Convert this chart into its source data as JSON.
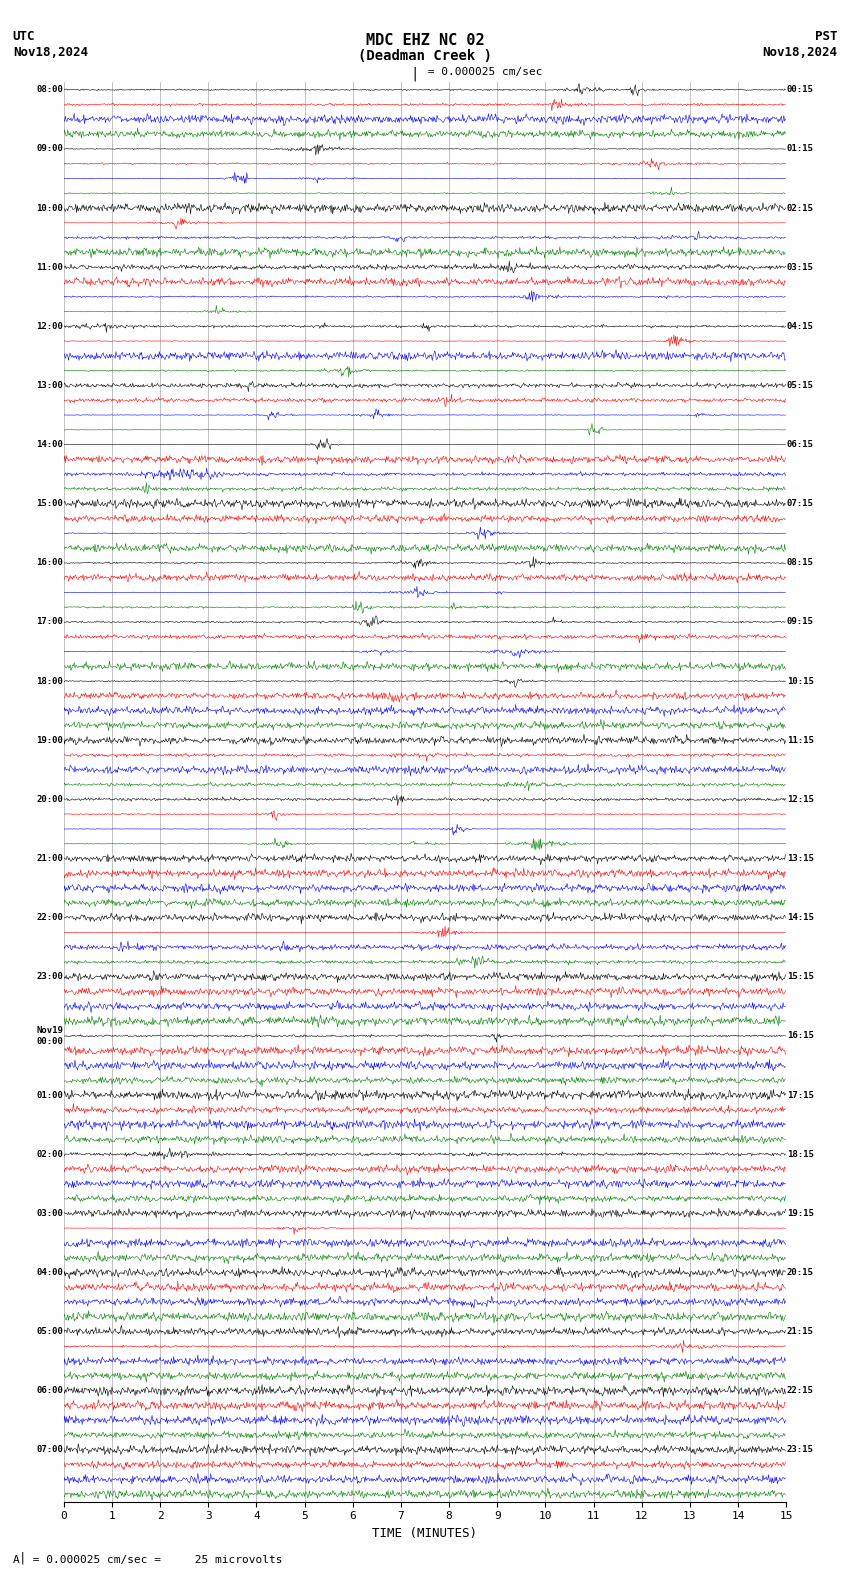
{
  "title_line1": "MDC EHZ NC 02",
  "title_line2": "(Deadman Creek )",
  "scale_text": "= 0.000025 cm/sec",
  "left_date_line1": "UTC",
  "left_date_line2": "Nov18,2024",
  "right_date_line1": "PST",
  "right_date_line2": "Nov18,2024",
  "bottom_label": "TIME (MINUTES)",
  "footnote": "= 0.000025 cm/sec =     25 microvolts",
  "utc_times": [
    "08:00",
    "09:00",
    "10:00",
    "11:00",
    "12:00",
    "13:00",
    "14:00",
    "15:00",
    "16:00",
    "17:00",
    "18:00",
    "19:00",
    "20:00",
    "21:00",
    "22:00",
    "23:00",
    "Nov19\n00:00",
    "01:00",
    "02:00",
    "03:00",
    "04:00",
    "05:00",
    "06:00",
    "07:00"
  ],
  "pst_times": [
    "00:15",
    "01:15",
    "02:15",
    "03:15",
    "04:15",
    "05:15",
    "06:15",
    "07:15",
    "08:15",
    "09:15",
    "10:15",
    "11:15",
    "12:15",
    "13:15",
    "14:15",
    "15:15",
    "16:15",
    "17:15",
    "18:15",
    "19:15",
    "20:15",
    "21:15",
    "22:15",
    "23:15"
  ],
  "n_rows": 24,
  "traces_per_row": 4,
  "colors": [
    "black",
    "red",
    "blue",
    "green"
  ],
  "bg_color": "white",
  "grid_color": "#aaaaaa",
  "n_points": 900,
  "fig_width": 8.5,
  "fig_height": 15.84,
  "dpi": 100
}
